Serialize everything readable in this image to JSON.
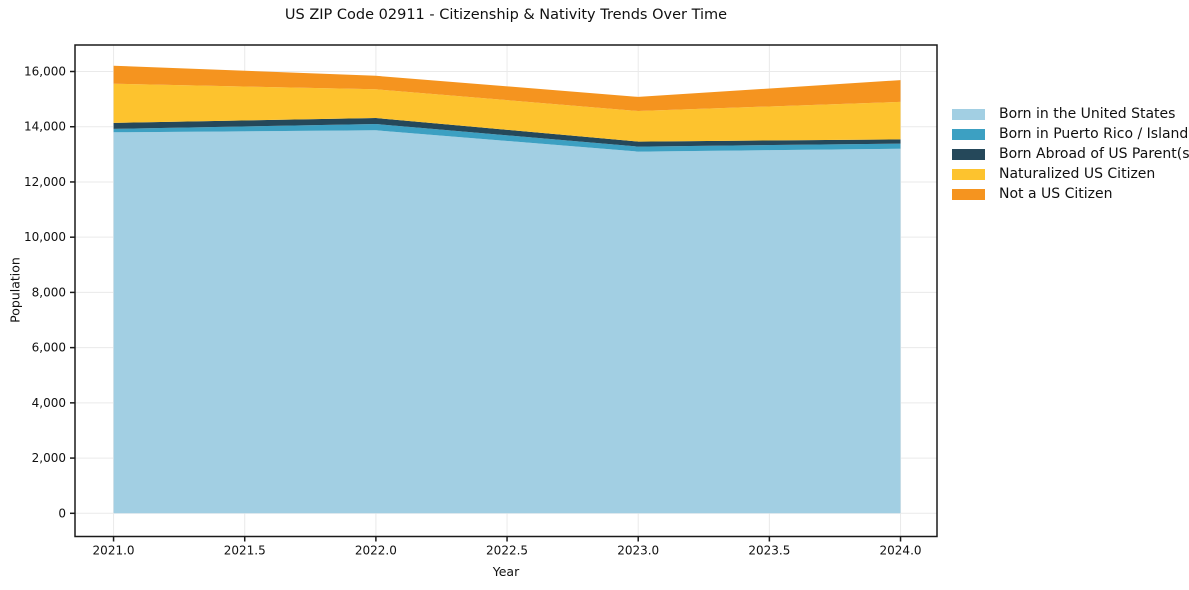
{
  "chart_data": {
    "type": "area",
    "stacked": true,
    "title": "US ZIP Code 02911 - Citizenship & Nativity Trends Over Time",
    "xlabel": "Year",
    "ylabel": "Population",
    "x": [
      2021,
      2022,
      2023,
      2024
    ],
    "series": [
      {
        "name": "Born in the United States",
        "color": "#a2cfe3",
        "values": [
          13800,
          13870,
          13100,
          13200
        ]
      },
      {
        "name": "Born in Puerto Rico / Islands",
        "color": "#3ca0c2",
        "values": [
          120,
          230,
          180,
          190
        ]
      },
      {
        "name": "Born Abroad of US Parent(s)",
        "color": "#25485a",
        "values": [
          220,
          215,
          180,
          150
        ]
      },
      {
        "name": "Naturalized US Citizen",
        "color": "#fdc32e",
        "values": [
          1420,
          1040,
          1110,
          1360
        ]
      },
      {
        "name": "Not a US Citizen",
        "color": "#f5941f",
        "values": [
          650,
          490,
          510,
          790
        ]
      }
    ],
    "xlim": [
      2020.853,
      2024.139
    ],
    "ylim": [
      -840,
      16960
    ],
    "xticks": {
      "values": [
        2021,
        2021.5,
        2022,
        2022.5,
        2023,
        2023.5,
        2024
      ],
      "labels": [
        "2021.0",
        "2021.5",
        "2022.0",
        "2022.5",
        "2023.0",
        "2023.5",
        "2024.0"
      ]
    },
    "yticks": {
      "values": [
        0,
        2000,
        4000,
        6000,
        8000,
        10000,
        12000,
        14000,
        16000
      ],
      "labels": [
        "0",
        "2,000",
        "4,000",
        "6,000",
        "8,000",
        "10,000",
        "12,000",
        "14,000",
        "16,000"
      ]
    },
    "grid": true,
    "legend_position": "center right",
    "style": {
      "grid_color": "#eaeaea",
      "spine_color": "#1a1a1a",
      "text_color": "#111111",
      "background": "#ffffff"
    }
  }
}
